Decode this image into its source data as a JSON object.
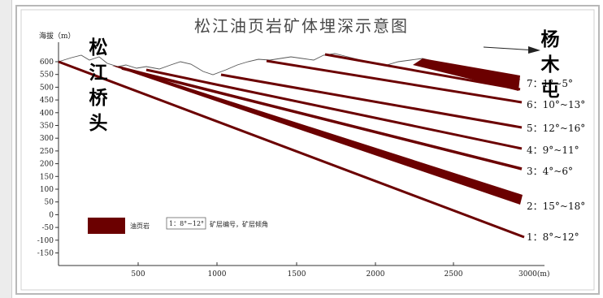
{
  "title": "松江油页岩矿体埋深示意图",
  "y_axis_label": "海拔（m）",
  "x_axis_unit_label": "3000(m)",
  "left_place": [
    "松",
    "江",
    "桥",
    "头"
  ],
  "right_place": [
    "杨",
    "木",
    "屯"
  ],
  "y_ticks": [
    "600",
    "550",
    "500",
    "450",
    "400",
    "350",
    "300",
    "250",
    "200",
    "150",
    "100",
    "50",
    "0",
    "-50",
    "-100",
    "-150"
  ],
  "x_ticks": [
    "500",
    "1000",
    "1500",
    "2000",
    "2500"
  ],
  "layers": [
    {
      "num": "7",
      "label": "7：1°~5°"
    },
    {
      "num": "6",
      "label": "6：10°~13°"
    },
    {
      "num": "5",
      "label": "5：12°~16°"
    },
    {
      "num": "4",
      "label": "4：9°~11°"
    },
    {
      "num": "3",
      "label": "3：4°~6°"
    },
    {
      "num": "2",
      "label": "2：15°~18°"
    },
    {
      "num": "1",
      "label": "1：8°~12°"
    }
  ],
  "legend": {
    "swatch_label": "油页岩",
    "sample_box": "1：8°~12°",
    "sample_label": "矿层编号，矿层倾角"
  },
  "colors": {
    "ore": "#6b0000",
    "frame": "#b8b8b8",
    "text": "#222222"
  }
}
